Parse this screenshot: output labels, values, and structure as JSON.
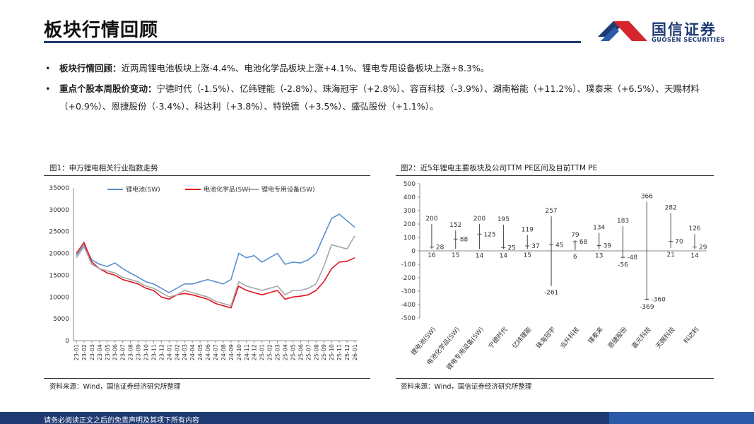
{
  "page_title": "板块行情回顾",
  "brand": {
    "name": "国信证券",
    "sub": "GUOSEN SECURITIES",
    "color_blue": "#1f3a73",
    "color_red": "#d7252d"
  },
  "bullets": [
    {
      "label": "板块行情回顾：",
      "text": "近两周锂电池板块上涨-4.4%、电池化学品板块上涨+4.1%、锂电专用设备板块上涨+8.3%。"
    },
    {
      "label": "重点个股本周股价变动：",
      "text": "宁德时代（-1.5%）、亿纬锂能（-2.8%）、珠海冠宇（+2.8%）、容百科技（-3.9%）、湖南裕能（+11.2%）、璞泰来（+6.5%）、天赐材料（+0.9%）、恩捷股份（-3.4%）、科达利（+3.8%）、特锐德（+3.5%）、盛弘股份（+1.1%）。"
    }
  ],
  "bullet_symbol": "•",
  "fig1": {
    "caption": "图1：申万锂电相关行业指数走势",
    "source": "资料来源：Wind，国信证券经济研究所整理"
  },
  "fig2": {
    "caption": "图2：近5年锂电主要板块及公司TTM PE区间及目前TTM PE",
    "source": "资料来源：Wind，国信证券经济研究所整理"
  },
  "footer": "请务必阅读正文之后的免责声明及其项下所有内容",
  "chart_data": [
    {
      "type": "line",
      "title": "",
      "ylim": [
        0,
        35000
      ],
      "yticks": [
        0,
        5000,
        10000,
        15000,
        20000,
        25000,
        30000,
        35000
      ],
      "xticks": [
        "23-01",
        "23-02",
        "23-03",
        "23-04",
        "23-05",
        "23-06",
        "23-07",
        "23-08",
        "23-09",
        "23-10",
        "23-11",
        "23-12",
        "24-01",
        "24-02",
        "24-03",
        "24-04",
        "24-05",
        "24-06",
        "24-07",
        "24-08",
        "24-09",
        "24-10",
        "24-11",
        "24-12",
        "25-01",
        "25-02",
        "25-03",
        "25-04",
        "25-05",
        "25-06",
        "25-07",
        "25-08",
        "25-09",
        "25-10",
        "25-11",
        "25-12",
        "26-01"
      ],
      "legend_position": "top",
      "series": [
        {
          "name": "锂电池(SW)",
          "color": "#5b8fd0",
          "x": [
            "23-01",
            "23-02",
            "23-03",
            "23-04",
            "23-05",
            "23-06",
            "23-07",
            "23-08",
            "23-09",
            "23-10",
            "23-11",
            "23-12",
            "24-01",
            "24-02",
            "24-03",
            "24-04",
            "24-05",
            "24-06",
            "24-07",
            "24-08",
            "24-09",
            "24-10",
            "24-11",
            "24-12",
            "25-01",
            "25-02",
            "25-03",
            "25-04",
            "25-05",
            "25-06",
            "25-07",
            "25-08",
            "25-09",
            "25-10",
            "25-11",
            "25-12",
            "26-01"
          ],
          "values": [
            19500,
            22000,
            18500,
            17500,
            17000,
            17800,
            16500,
            15500,
            14500,
            13500,
            13000,
            12000,
            11000,
            12000,
            13000,
            13000,
            13500,
            14000,
            13500,
            13000,
            14000,
            20000,
            19000,
            19500,
            18000,
            19000,
            20000,
            17500,
            18000,
            17800,
            18500,
            20000,
            24000,
            28000,
            29000,
            27500,
            26000
          ]
        },
        {
          "name": "电池化学品(SW)",
          "color": "#e0141e",
          "x": [
            "23-01",
            "23-02",
            "23-03",
            "23-04",
            "23-05",
            "23-06",
            "23-07",
            "23-08",
            "23-09",
            "23-10",
            "23-11",
            "23-12",
            "24-01",
            "24-02",
            "24-03",
            "24-04",
            "24-05",
            "24-06",
            "24-07",
            "24-08",
            "24-09",
            "24-10",
            "24-11",
            "24-12",
            "25-01",
            "25-02",
            "25-03",
            "25-04",
            "25-05",
            "25-06",
            "25-07",
            "25-08",
            "25-09",
            "25-10",
            "25-11",
            "25-12",
            "26-01"
          ],
          "values": [
            20000,
            22500,
            18000,
            16500,
            15500,
            15000,
            14000,
            13500,
            13000,
            12000,
            11500,
            10000,
            9500,
            10500,
            10800,
            10500,
            10000,
            9500,
            8500,
            8000,
            7500,
            12500,
            11500,
            11000,
            10500,
            11000,
            11500,
            9500,
            10000,
            10200,
            10500,
            11500,
            13500,
            16500,
            18000,
            18200,
            19000
          ]
        },
        {
          "name": "锂电专用设备(SW)",
          "color": "#a6a6a6",
          "x": [
            "23-01",
            "23-02",
            "23-03",
            "23-04",
            "23-05",
            "23-06",
            "23-07",
            "23-08",
            "23-09",
            "23-10",
            "23-11",
            "23-12",
            "24-01",
            "24-02",
            "24-03",
            "24-04",
            "24-05",
            "24-06",
            "24-07",
            "24-08",
            "24-09",
            "24-10",
            "24-11",
            "24-12",
            "25-01",
            "25-02",
            "25-03",
            "25-04",
            "25-05",
            "25-06",
            "25-07",
            "25-08",
            "25-09",
            "25-10",
            "25-11",
            "25-12",
            "26-01"
          ],
          "values": [
            19000,
            21500,
            17500,
            16500,
            16000,
            15500,
            14500,
            14000,
            13500,
            12500,
            12000,
            11000,
            10000,
            10500,
            11500,
            11000,
            10500,
            10000,
            9000,
            8500,
            8000,
            13500,
            12500,
            12000,
            11500,
            12000,
            12500,
            10500,
            11500,
            11500,
            12000,
            13000,
            17000,
            22000,
            21500,
            21000,
            24000
          ]
        }
      ]
    },
    {
      "type": "range",
      "title": "",
      "ylim": [
        -500,
        500
      ],
      "yticks": [
        -500,
        -400,
        -300,
        -200,
        -100,
        0,
        100,
        200,
        300,
        400,
        500
      ],
      "categories": [
        "锂电池(SW)",
        "电池化学品(SW)",
        "锂电专用设备(SW)",
        "宁德时代",
        "亿纬锂能",
        "珠海冠宇",
        "当升科技",
        "璞泰来",
        "恩捷股份",
        "嘉元科技",
        "天赐科技",
        "科达利"
      ],
      "max": [
        200,
        152,
        200,
        195,
        119,
        257,
        79,
        134,
        183,
        366,
        282,
        126
      ],
      "min": [
        16,
        15,
        14,
        14,
        15,
        -261,
        6,
        13,
        -56,
        -369,
        21,
        14
      ],
      "current": [
        28,
        88,
        125,
        25,
        37,
        45,
        68,
        39,
        -48,
        -360,
        70,
        29
      ]
    }
  ]
}
